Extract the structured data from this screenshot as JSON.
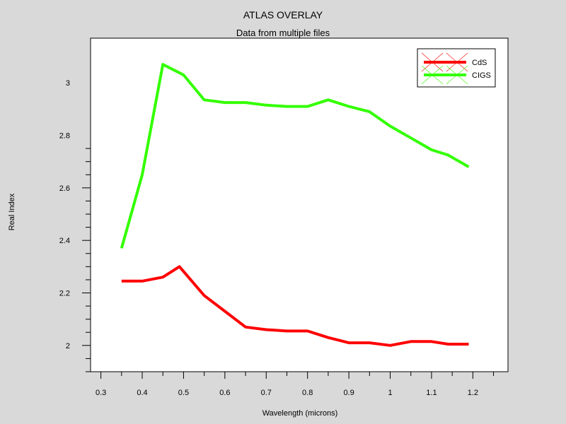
{
  "chart_data": {
    "type": "line",
    "title": "ATLAS OVERLAY",
    "subtitle": "Data from multiple files",
    "xlabel": "Wavelength (microns)",
    "ylabel": "Real Index",
    "xlim": [
      0.275,
      1.285
    ],
    "ylim": [
      1.9,
      3.17
    ],
    "x_major_ticks": [
      0.3,
      0.4,
      0.5,
      0.6,
      0.7,
      0.8,
      0.9,
      1,
      1.1,
      1.2
    ],
    "x_tick_labels": [
      "0.3",
      "0.4",
      "0.5",
      "0.6",
      "0.7",
      "0.8",
      "0.9",
      "1",
      "1.1",
      "1.2"
    ],
    "y_major_ticks": [
      2,
      2.2,
      2.4,
      2.6,
      2.8,
      3
    ],
    "y_tick_labels": [
      "2",
      "2.2",
      "2.4",
      "2.6",
      "2.8",
      "3"
    ],
    "grid": false,
    "legend_position": "top-right",
    "series": [
      {
        "name": "CdS",
        "color": "#ff0000",
        "x": [
          0.35,
          0.4,
          0.45,
          0.49,
          0.55,
          0.6,
          0.65,
          0.7,
          0.75,
          0.8,
          0.85,
          0.9,
          0.95,
          1.0,
          1.05,
          1.1,
          1.14,
          1.19
        ],
        "y": [
          2.245,
          2.245,
          2.26,
          2.3,
          2.19,
          2.13,
          2.07,
          2.06,
          2.055,
          2.055,
          2.03,
          2.01,
          2.01,
          2.0,
          2.015,
          2.015,
          2.005,
          2.005
        ]
      },
      {
        "name": "CIGS",
        "color": "#33ff00",
        "x": [
          0.35,
          0.4,
          0.45,
          0.5,
          0.55,
          0.6,
          0.65,
          0.7,
          0.75,
          0.8,
          0.85,
          0.9,
          0.95,
          1.0,
          1.05,
          1.1,
          1.14,
          1.19
        ],
        "y": [
          2.37,
          2.65,
          3.07,
          3.03,
          2.935,
          2.925,
          2.925,
          2.915,
          2.91,
          2.91,
          2.935,
          2.91,
          2.89,
          2.835,
          2.79,
          2.745,
          2.725,
          2.68
        ]
      }
    ]
  }
}
